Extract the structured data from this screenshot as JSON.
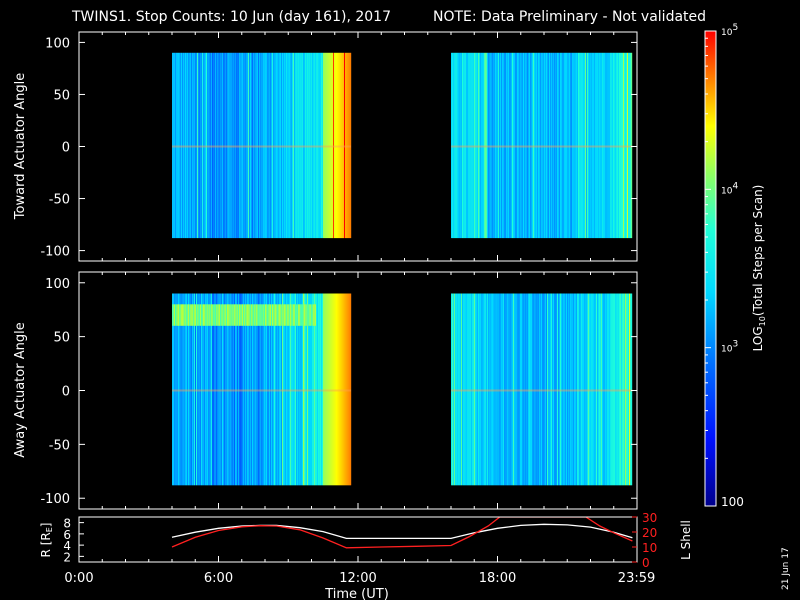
{
  "title": {
    "main": "TWINS1. Stop Counts: 10 Jun (day 161), 2017",
    "note": "NOTE: Data Preliminary - Not validated",
    "note_color": "#ff2020"
  },
  "stamp": "21 Jun 17",
  "colorbar": {
    "label": "LOG10(Total Steps per Scan)",
    "label_pre": "LOG",
    "label_sub": "10",
    "label_post": "(Total Steps per Scan)",
    "ticks": [
      {
        "value": 100,
        "text": "100"
      },
      {
        "value": 1000,
        "text": "10^3",
        "base": "10",
        "exp": "3"
      },
      {
        "value": 10000,
        "text": "10^4",
        "base": "10",
        "exp": "4"
      },
      {
        "value": 100000,
        "text": "10^5",
        "base": "10",
        "exp": "5"
      }
    ],
    "range": [
      100,
      100000
    ],
    "scale": "log"
  },
  "chart_data": [
    {
      "type": "heatmap",
      "panel": "toward",
      "ylabel": "Toward Actuator Angle",
      "xlim": [
        0,
        24
      ],
      "ylim": [
        -110,
        110
      ],
      "yticks": [
        100,
        50,
        0,
        -50,
        -100
      ],
      "data_blocks": [
        {
          "t_start": 4.0,
          "t_end": 11.7,
          "angle_range": [
            -88,
            90
          ]
        },
        {
          "t_start": 16.0,
          "t_end": 23.8,
          "angle_range": [
            -88,
            90
          ]
        }
      ],
      "background": "no data (black)"
    },
    {
      "type": "heatmap",
      "panel": "away",
      "ylabel": "Away Actuator Angle",
      "xlim": [
        0,
        24
      ],
      "ylim": [
        -110,
        110
      ],
      "yticks": [
        100,
        50,
        0,
        -50,
        -100
      ],
      "data_blocks": [
        {
          "t_start": 4.0,
          "t_end": 11.7,
          "angle_range": [
            -88,
            90
          ]
        },
        {
          "t_start": 16.0,
          "t_end": 23.8,
          "angle_range": [
            -88,
            90
          ]
        }
      ],
      "background": "no data (black)"
    },
    {
      "type": "line",
      "panel": "orbit",
      "xlabel": "Time (UT)",
      "xticks": [
        {
          "value": 0,
          "text": "0:00"
        },
        {
          "value": 6,
          "text": "6:00"
        },
        {
          "value": 12,
          "text": "12:00"
        },
        {
          "value": 18,
          "text": "18:00"
        },
        {
          "value": 23.98,
          "text": "23:59"
        }
      ],
      "xlim": [
        0,
        24
      ],
      "ylabel_left": "R [RE]",
      "ylabel_left_pre": "R [R",
      "ylabel_left_sub": "E",
      "ylabel_left_post": "]",
      "ylim_left": [
        1,
        9
      ],
      "yticks_left": [
        8,
        6,
        4,
        2
      ],
      "ylabel_right": "L Shell",
      "ylabel_right_color": "#ff2020",
      "ylim_right": [
        0,
        30
      ],
      "yticks_right": [
        30,
        20,
        10,
        0
      ],
      "series": [
        {
          "name": "R",
          "color": "#ffffff",
          "axis": "left",
          "x": [
            4.0,
            5.0,
            6.0,
            7.0,
            7.8,
            8.5,
            9.5,
            10.5,
            11.5,
            16.0,
            17.0,
            18.0,
            19.0,
            20.0,
            21.0,
            22.0,
            23.0,
            23.8
          ],
          "y": [
            5.4,
            6.3,
            7.0,
            7.4,
            7.5,
            7.5,
            7.1,
            6.4,
            5.2,
            5.2,
            6.2,
            7.0,
            7.5,
            7.7,
            7.6,
            7.2,
            6.3,
            5.3
          ]
        },
        {
          "name": "L Shell",
          "color": "#ff2020",
          "axis": "right",
          "x": [
            4.0,
            5.0,
            6.0,
            7.0,
            7.8,
            8.5,
            9.5,
            10.5,
            11.5,
            13.0,
            14.5,
            16.0,
            16.8,
            17.6,
            18.1,
            21.8,
            22.4,
            23.0,
            23.8
          ],
          "y": [
            10.0,
            16.5,
            21.0,
            23.5,
            24.2,
            24.0,
            21.5,
            16.0,
            9.5,
            10.0,
            10.5,
            11.0,
            17.0,
            24.0,
            30.0,
            30.0,
            24.0,
            19.5,
            14.0
          ]
        }
      ]
    }
  ]
}
